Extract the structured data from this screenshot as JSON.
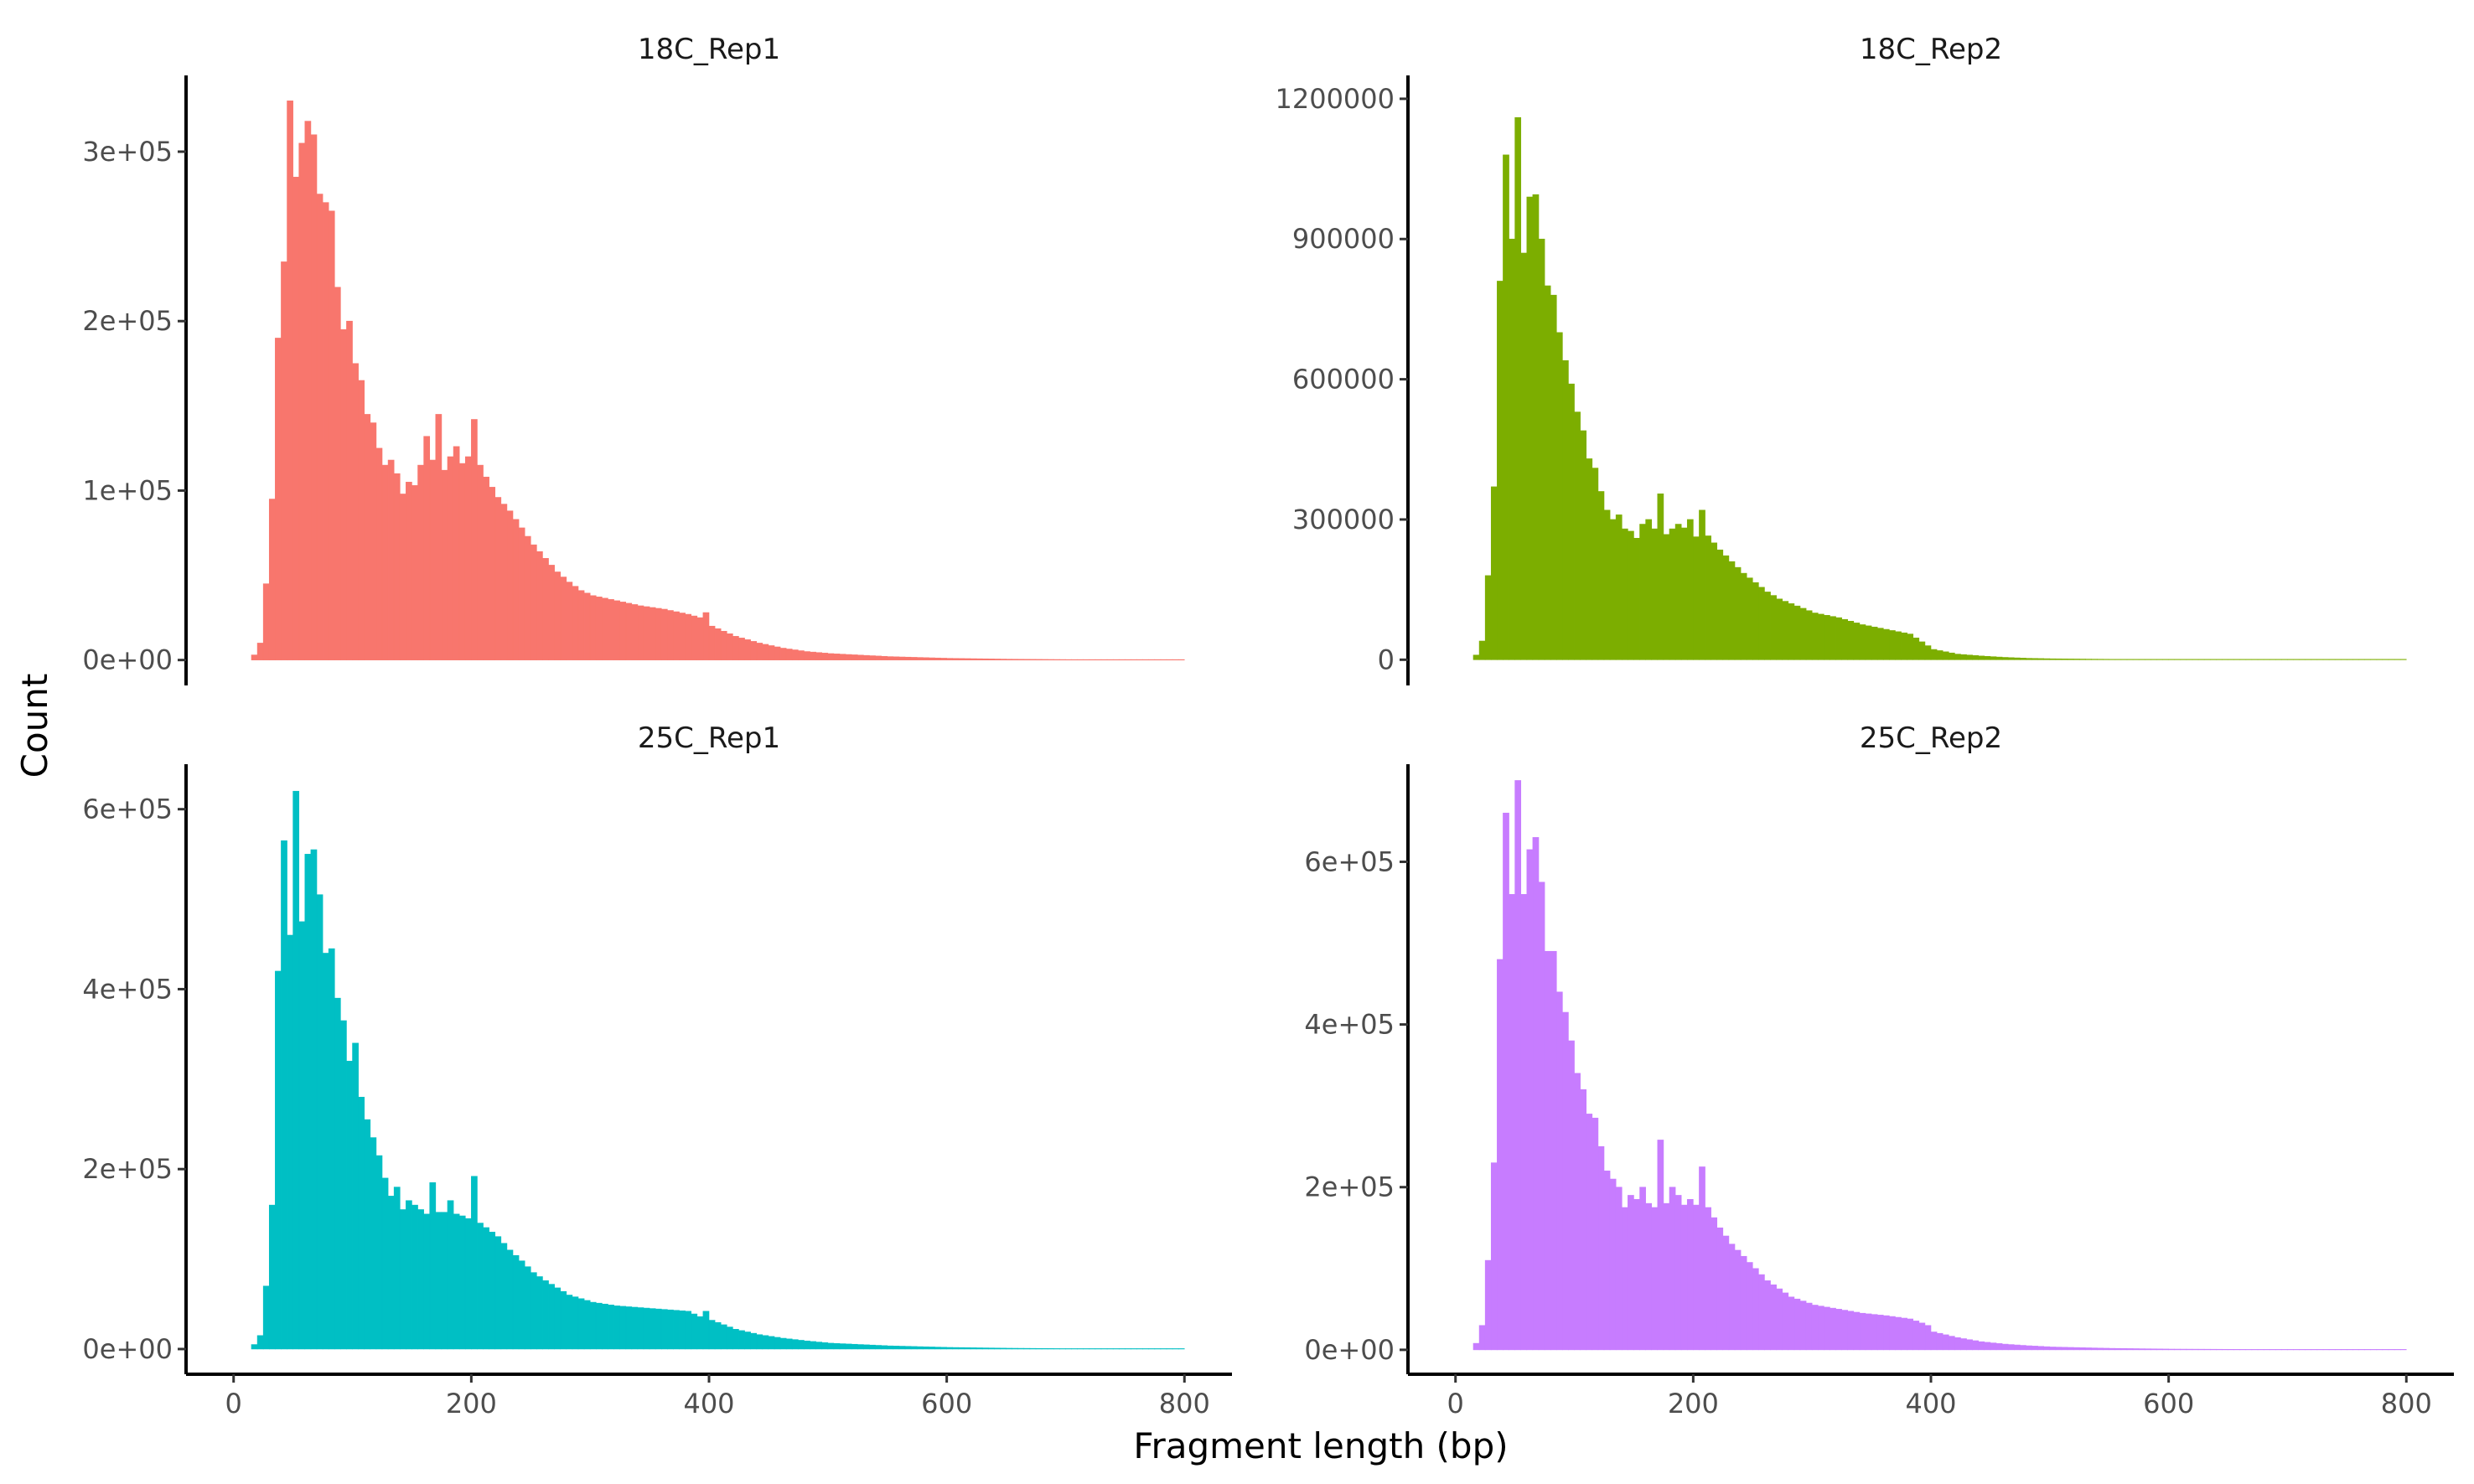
{
  "chart_data": {
    "type": "bar",
    "layout": "facet-grid 2x2, free y scales",
    "xlabel": "Fragment length (bp)",
    "ylabel": "Count",
    "grid": false,
    "legend": "none",
    "x_ticks": [
      0,
      200,
      400,
      600,
      800
    ],
    "x_tick_labels": [
      "0",
      "200",
      "400",
      "600",
      "800"
    ],
    "xlim": [
      -40,
      840
    ],
    "bin_width": 5,
    "panels": [
      {
        "strip": "18C_Rep1",
        "color": "#F8766D",
        "ylim": [
          -15000,
          345000
        ],
        "y_ticks": [
          0,
          100000,
          200000,
          300000
        ],
        "y_tick_labels": [
          "0e+00",
          "1e+05",
          "2e+05",
          "3e+05"
        ],
        "anchors": [
          [
            15,
            3000
          ],
          [
            20,
            10000
          ],
          [
            25,
            45000
          ],
          [
            30,
            95000
          ],
          [
            35,
            190000
          ],
          [
            40,
            235000
          ],
          [
            45,
            330000
          ],
          [
            50,
            285000
          ],
          [
            55,
            305000
          ],
          [
            60,
            318000
          ],
          [
            65,
            310000
          ],
          [
            70,
            275000
          ],
          [
            75,
            270000
          ],
          [
            80,
            265000
          ],
          [
            85,
            220000
          ],
          [
            90,
            195000
          ],
          [
            95,
            200000
          ],
          [
            100,
            175000
          ],
          [
            105,
            165000
          ],
          [
            110,
            145000
          ],
          [
            115,
            140000
          ],
          [
            120,
            125000
          ],
          [
            125,
            115000
          ],
          [
            130,
            118000
          ],
          [
            135,
            110000
          ],
          [
            140,
            98000
          ],
          [
            145,
            105000
          ],
          [
            150,
            103000
          ],
          [
            155,
            115000
          ],
          [
            160,
            132000
          ],
          [
            165,
            118000
          ],
          [
            170,
            145000
          ],
          [
            175,
            112000
          ],
          [
            180,
            120000
          ],
          [
            185,
            126000
          ],
          [
            190,
            116000
          ],
          [
            195,
            120000
          ],
          [
            200,
            142000
          ],
          [
            205,
            115000
          ],
          [
            210,
            108000
          ],
          [
            220,
            96000
          ],
          [
            230,
            88000
          ],
          [
            240,
            78000
          ],
          [
            250,
            68000
          ],
          [
            260,
            60000
          ],
          [
            270,
            52000
          ],
          [
            280,
            46000
          ],
          [
            290,
            41000
          ],
          [
            300,
            38000
          ],
          [
            320,
            35000
          ],
          [
            340,
            32000
          ],
          [
            360,
            30000
          ],
          [
            380,
            27000
          ],
          [
            390,
            25000
          ],
          [
            395,
            28000
          ],
          [
            400,
            20000
          ],
          [
            420,
            14000
          ],
          [
            440,
            10000
          ],
          [
            460,
            7000
          ],
          [
            480,
            5000
          ],
          [
            500,
            3800
          ],
          [
            550,
            2000
          ],
          [
            600,
            1000
          ],
          [
            650,
            500
          ],
          [
            700,
            250
          ],
          [
            750,
            120
          ],
          [
            800,
            50
          ]
        ]
      },
      {
        "strip": "18C_Rep2",
        "color": "#7CAE00",
        "ylim": [
          -55000,
          1250000
        ],
        "y_ticks": [
          0,
          300000,
          600000,
          900000,
          1200000
        ],
        "y_tick_labels": [
          "0",
          "300000",
          "600000",
          "900000",
          "1200000"
        ],
        "anchors": [
          [
            15,
            10000
          ],
          [
            20,
            40000
          ],
          [
            25,
            180000
          ],
          [
            30,
            370000
          ],
          [
            35,
            810000
          ],
          [
            40,
            1080000
          ],
          [
            45,
            900000
          ],
          [
            50,
            1160000
          ],
          [
            55,
            870000
          ],
          [
            60,
            990000
          ],
          [
            65,
            995000
          ],
          [
            70,
            900000
          ],
          [
            75,
            800000
          ],
          [
            80,
            780000
          ],
          [
            85,
            700000
          ],
          [
            90,
            640000
          ],
          [
            95,
            590000
          ],
          [
            100,
            530000
          ],
          [
            105,
            490000
          ],
          [
            110,
            430000
          ],
          [
            115,
            410000
          ],
          [
            120,
            360000
          ],
          [
            125,
            320000
          ],
          [
            130,
            300000
          ],
          [
            135,
            310000
          ],
          [
            140,
            280000
          ],
          [
            145,
            275000
          ],
          [
            150,
            260000
          ],
          [
            155,
            290000
          ],
          [
            160,
            300000
          ],
          [
            165,
            280000
          ],
          [
            170,
            355000
          ],
          [
            175,
            268000
          ],
          [
            180,
            280000
          ],
          [
            185,
            290000
          ],
          [
            190,
            282000
          ],
          [
            195,
            300000
          ],
          [
            200,
            263000
          ],
          [
            205,
            320000
          ],
          [
            210,
            265000
          ],
          [
            220,
            235000
          ],
          [
            230,
            210000
          ],
          [
            240,
            185000
          ],
          [
            250,
            165000
          ],
          [
            260,
            145000
          ],
          [
            270,
            130000
          ],
          [
            280,
            120000
          ],
          [
            300,
            100000
          ],
          [
            320,
            90000
          ],
          [
            340,
            75000
          ],
          [
            360,
            65000
          ],
          [
            380,
            55000
          ],
          [
            395,
            30000
          ],
          [
            400,
            22000
          ],
          [
            420,
            12000
          ],
          [
            440,
            8000
          ],
          [
            460,
            5000
          ],
          [
            480,
            3000
          ],
          [
            500,
            2000
          ],
          [
            550,
            900
          ],
          [
            600,
            400
          ],
          [
            700,
            150
          ],
          [
            800,
            50
          ]
        ]
      },
      {
        "strip": "25C_Rep1",
        "color": "#00BFC4",
        "ylim": [
          -28000,
          650000
        ],
        "y_ticks": [
          0,
          200000,
          400000,
          600000
        ],
        "y_tick_labels": [
          "0e+00",
          "2e+05",
          "4e+05",
          "6e+05"
        ],
        "anchors": [
          [
            15,
            5000
          ],
          [
            20,
            15000
          ],
          [
            25,
            70000
          ],
          [
            30,
            160000
          ],
          [
            35,
            420000
          ],
          [
            40,
            565000
          ],
          [
            45,
            460000
          ],
          [
            50,
            620000
          ],
          [
            55,
            475000
          ],
          [
            60,
            550000
          ],
          [
            65,
            555000
          ],
          [
            70,
            505000
          ],
          [
            75,
            440000
          ],
          [
            80,
            445000
          ],
          [
            85,
            390000
          ],
          [
            90,
            365000
          ],
          [
            95,
            320000
          ],
          [
            100,
            340000
          ],
          [
            105,
            280000
          ],
          [
            110,
            255000
          ],
          [
            115,
            235000
          ],
          [
            120,
            215000
          ],
          [
            125,
            190000
          ],
          [
            130,
            170000
          ],
          [
            135,
            180000
          ],
          [
            140,
            155000
          ],
          [
            145,
            165000
          ],
          [
            150,
            160000
          ],
          [
            155,
            155000
          ],
          [
            160,
            150000
          ],
          [
            165,
            185000
          ],
          [
            170,
            152000
          ],
          [
            175,
            152000
          ],
          [
            180,
            165000
          ],
          [
            185,
            150000
          ],
          [
            190,
            148000
          ],
          [
            195,
            145000
          ],
          [
            200,
            192000
          ],
          [
            205,
            140000
          ],
          [
            210,
            135000
          ],
          [
            220,
            125000
          ],
          [
            230,
            110000
          ],
          [
            240,
            98000
          ],
          [
            250,
            85000
          ],
          [
            260,
            76000
          ],
          [
            270,
            68000
          ],
          [
            280,
            60000
          ],
          [
            290,
            56000
          ],
          [
            300,
            52000
          ],
          [
            320,
            48000
          ],
          [
            340,
            46000
          ],
          [
            360,
            44000
          ],
          [
            380,
            42000
          ],
          [
            390,
            36000
          ],
          [
            395,
            42000
          ],
          [
            400,
            32000
          ],
          [
            420,
            22000
          ],
          [
            440,
            16000
          ],
          [
            460,
            12000
          ],
          [
            480,
            9000
          ],
          [
            500,
            6500
          ],
          [
            550,
            3500
          ],
          [
            600,
            1800
          ],
          [
            650,
            900
          ],
          [
            700,
            400
          ],
          [
            750,
            200
          ],
          [
            800,
            80
          ]
        ]
      },
      {
        "strip": "25C_Rep2",
        "color": "#C77CFF",
        "ylim": [
          -30000,
          720000
        ],
        "y_ticks": [
          0,
          200000,
          400000,
          600000
        ],
        "y_tick_labels": [
          "0e+00",
          "2e+05",
          "4e+05",
          "6e+05"
        ],
        "anchors": [
          [
            15,
            8000
          ],
          [
            20,
            30000
          ],
          [
            25,
            110000
          ],
          [
            30,
            230000
          ],
          [
            35,
            480000
          ],
          [
            40,
            660000
          ],
          [
            45,
            560000
          ],
          [
            50,
            700000
          ],
          [
            55,
            560000
          ],
          [
            60,
            615000
          ],
          [
            65,
            630000
          ],
          [
            70,
            575000
          ],
          [
            75,
            490000
          ],
          [
            80,
            490000
          ],
          [
            85,
            440000
          ],
          [
            90,
            415000
          ],
          [
            95,
            380000
          ],
          [
            100,
            340000
          ],
          [
            105,
            320000
          ],
          [
            110,
            290000
          ],
          [
            115,
            285000
          ],
          [
            120,
            250000
          ],
          [
            125,
            220000
          ],
          [
            130,
            210000
          ],
          [
            135,
            200000
          ],
          [
            140,
            175000
          ],
          [
            145,
            190000
          ],
          [
            150,
            185000
          ],
          [
            155,
            200000
          ],
          [
            160,
            180000
          ],
          [
            165,
            175000
          ],
          [
            170,
            258000
          ],
          [
            175,
            180000
          ],
          [
            180,
            200000
          ],
          [
            185,
            190000
          ],
          [
            190,
            178000
          ],
          [
            195,
            185000
          ],
          [
            200,
            178000
          ],
          [
            205,
            225000
          ],
          [
            210,
            175000
          ],
          [
            220,
            150000
          ],
          [
            230,
            130000
          ],
          [
            240,
            115000
          ],
          [
            250,
            100000
          ],
          [
            260,
            85000
          ],
          [
            270,
            75000
          ],
          [
            280,
            65000
          ],
          [
            300,
            55000
          ],
          [
            320,
            50000
          ],
          [
            340,
            45000
          ],
          [
            360,
            42000
          ],
          [
            380,
            38000
          ],
          [
            390,
            33000
          ],
          [
            395,
            30000
          ],
          [
            400,
            22000
          ],
          [
            420,
            15000
          ],
          [
            440,
            10000
          ],
          [
            460,
            7000
          ],
          [
            480,
            5000
          ],
          [
            500,
            3500
          ],
          [
            550,
            1800
          ],
          [
            600,
            900
          ],
          [
            700,
            300
          ],
          [
            800,
            80
          ]
        ]
      }
    ]
  }
}
